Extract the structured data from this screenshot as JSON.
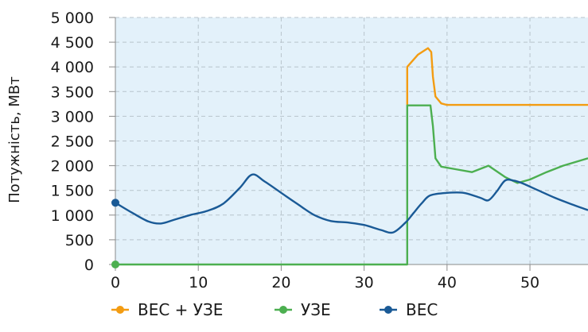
{
  "chart_data": {
    "type": "line",
    "title": "",
    "xlabel": "",
    "ylabel": "Потужність, МВт",
    "xlim": [
      0,
      57
    ],
    "ylim": [
      0,
      5000
    ],
    "x_ticks": [
      0,
      10,
      20,
      30,
      40,
      50
    ],
    "x_tick_labels": [
      "0",
      "10",
      "20",
      "30",
      "40",
      "50"
    ],
    "y_ticks": [
      0,
      500,
      1000,
      1500,
      2000,
      2500,
      3000,
      3500,
      4000,
      4500,
      5000
    ],
    "y_tick_labels": [
      "0",
      "500",
      "1 000",
      "1 500",
      "2 000",
      "2 500",
      "3 000",
      "3 500",
      "4 000",
      "4 500",
      "5 000"
    ],
    "grid": true,
    "legend_position": "bottom",
    "plot_background": "#e3f1fa",
    "series": [
      {
        "name": "ВЕС + УЗЕ",
        "color": "#f39c12",
        "x": [
          35.2,
          35.2,
          36.5,
          37.7,
          38.1,
          38.3,
          38.6,
          39.3,
          40.0,
          45,
          50,
          57
        ],
        "y": [
          3220,
          4000,
          4250,
          4380,
          4300,
          3800,
          3400,
          3260,
          3230,
          3230,
          3230,
          3230
        ]
      },
      {
        "name": "УЗЕ",
        "color": "#4caf50",
        "x": [
          0,
          35.2,
          35.2,
          37.7,
          38.0,
          38.3,
          38.6,
          39.3,
          41,
          43,
          45,
          47,
          48.5,
          50,
          52,
          54,
          57
        ],
        "y": [
          0,
          0,
          3220,
          3220,
          3220,
          2800,
          2150,
          1980,
          1930,
          1870,
          2000,
          1770,
          1650,
          1720,
          1870,
          2000,
          2150
        ]
      },
      {
        "name": "ВЕС",
        "color": "#1a5a96",
        "x": [
          0,
          2,
          4,
          5.5,
          7,
          9,
          11,
          13,
          15,
          16.5,
          18,
          20,
          22,
          24,
          26,
          28,
          30,
          32,
          33.5,
          35,
          36,
          37,
          38,
          40,
          42,
          44,
          45,
          46,
          47,
          48,
          49,
          51,
          53,
          55,
          57
        ],
        "y": [
          1250,
          1050,
          870,
          830,
          900,
          1000,
          1080,
          1230,
          1550,
          1820,
          1680,
          1450,
          1220,
          1000,
          880,
          850,
          800,
          700,
          650,
          850,
          1050,
          1250,
          1400,
          1450,
          1450,
          1350,
          1300,
          1480,
          1700,
          1700,
          1650,
          1500,
          1350,
          1220,
          1100
        ]
      }
    ]
  }
}
